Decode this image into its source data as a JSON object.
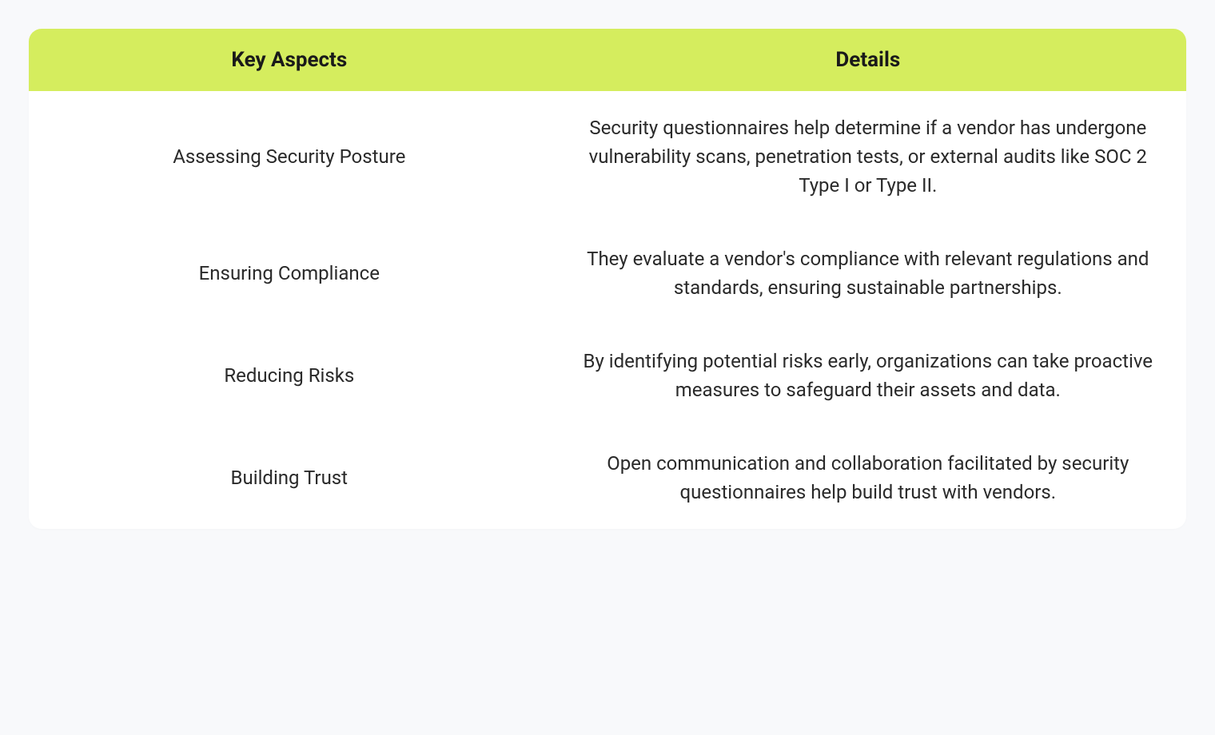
{
  "table": {
    "type": "table",
    "background_color": "#f8f9fb",
    "container_bg": "#ffffff",
    "border_radius": 16,
    "header_bg": "#d5ed5e",
    "header_text_color": "#1a1a1a",
    "header_fontsize": 26,
    "header_fontweight": 700,
    "cell_text_color": "#2a2a2a",
    "cell_fontsize": 24,
    "cell_line_height": 1.5,
    "column_widths": [
      "45%",
      "55%"
    ],
    "columns": [
      "Key Aspects",
      "Details"
    ],
    "rows": [
      {
        "aspect": "Assessing Security Posture",
        "details": "Security questionnaires help determine if a vendor has undergone vulnerability scans, penetration tests, or external audits like SOC 2 Type I or Type II."
      },
      {
        "aspect": "Ensuring Compliance",
        "details": "They evaluate a vendor's compliance with relevant regulations and standards, ensuring sustainable partnerships."
      },
      {
        "aspect": "Reducing Risks",
        "details": "By identifying potential risks early, organizations can take proactive measures to safeguard their assets and data."
      },
      {
        "aspect": "Building Trust",
        "details": "Open communication and collaboration facilitated by security questionnaires help build trust with vendors."
      }
    ]
  }
}
